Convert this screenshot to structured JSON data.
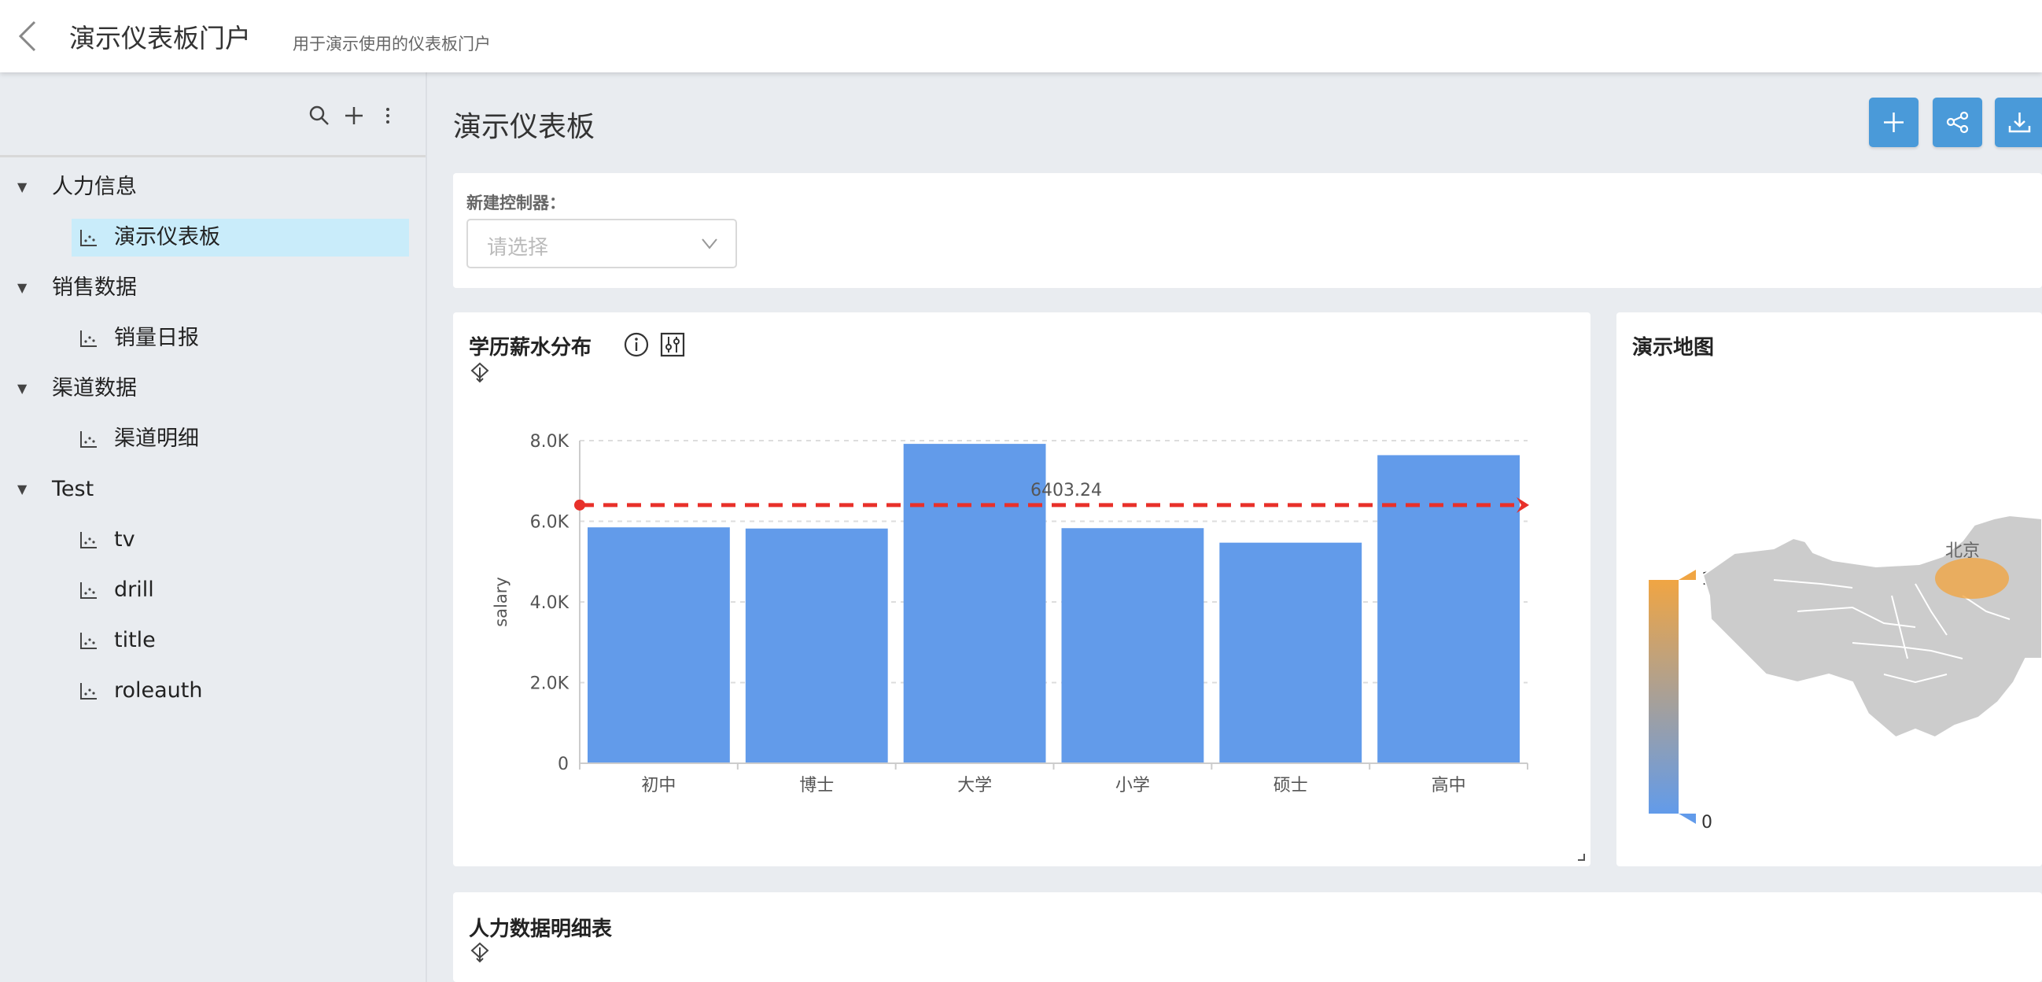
{
  "header": {
    "title": "演示仪表板门户",
    "subtitle": "用于演示使用的仪表板门户"
  },
  "sidebar": {
    "tools": [
      "search-icon",
      "plus-icon",
      "more-vertical-icon"
    ],
    "groups": [
      {
        "label": "人力信息",
        "items": [
          {
            "label": "演示仪表板",
            "selected": true
          }
        ]
      },
      {
        "label": "销售数据",
        "items": [
          {
            "label": "销量日报"
          }
        ]
      },
      {
        "label": "渠道数据",
        "items": [
          {
            "label": "渠道明细"
          }
        ]
      },
      {
        "label": "Test",
        "items": [
          {
            "label": "tv"
          },
          {
            "label": "drill"
          },
          {
            "label": "title"
          },
          {
            "label": "roleauth"
          }
        ]
      }
    ]
  },
  "main": {
    "title": "演示仪表板",
    "toolbar": [
      "plus-icon",
      "share-icon",
      "download-icon"
    ],
    "controller": {
      "label": "新建控制器：",
      "placeholder": "请选择"
    },
    "colors": {
      "accent": "#4a9ad9",
      "bar": "#629bea",
      "markline": "#e8302a",
      "selected": "#c9ecfa"
    }
  },
  "chart_card": {
    "title": "学历薪水分布"
  },
  "chart_data": {
    "type": "bar",
    "title": "学历薪水分布",
    "categories": [
      "初中",
      "博士",
      "大学",
      "小学",
      "硕士",
      "高中"
    ],
    "values": [
      5850,
      5820,
      7920,
      5830,
      5470,
      7640
    ],
    "ylabel": "salary",
    "ylim": [
      0,
      8000
    ],
    "yticks": [
      "0",
      "2.0K",
      "4.0K",
      "6.0K",
      "8.0K"
    ],
    "ytick_values": [
      0,
      2000,
      4000,
      6000,
      8000
    ],
    "grid": true,
    "markline": {
      "value": 6403.24,
      "label": "6403.24"
    }
  },
  "map_card": {
    "title": "演示地图",
    "visual_map": {
      "max": "10687",
      "min": "0",
      "colors": [
        "#f0a543",
        "#629bea"
      ]
    },
    "points": [
      {
        "name": "北京"
      }
    ]
  },
  "table_card": {
    "title": "人力数据明细表"
  }
}
